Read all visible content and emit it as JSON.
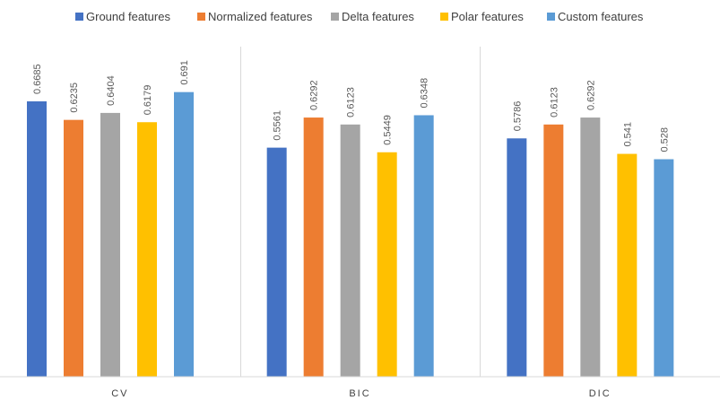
{
  "chart_data": {
    "type": "bar",
    "categories": [
      "CV",
      "BIC",
      "DIC"
    ],
    "series": [
      {
        "name": "Ground features",
        "color": "#4472C4",
        "values": [
          0.6685,
          0.5561,
          0.5786
        ],
        "labels": [
          "0.6685",
          "0.5561",
          "0.5786"
        ]
      },
      {
        "name": "Normalized features",
        "color": "#ED7D31",
        "values": [
          0.6235,
          0.6292,
          0.6123
        ],
        "labels": [
          "0.6235",
          "0.6292",
          "0.6123"
        ]
      },
      {
        "name": "Delta features",
        "color": "#A5A5A5",
        "values": [
          0.6404,
          0.6123,
          0.6292
        ],
        "labels": [
          "0.6404",
          "0.6123",
          "0.6292"
        ]
      },
      {
        "name": "Polar features",
        "color": "#FFC000",
        "values": [
          0.6179,
          0.5449,
          0.541
        ],
        "labels": [
          "0.6179",
          "0.5449",
          "0.541"
        ]
      },
      {
        "name": "Custom features",
        "color": "#5B9BD5",
        "values": [
          0.691,
          0.6348,
          0.528
        ],
        "labels": [
          "0.691",
          "0.6348",
          "0.528"
        ]
      }
    ],
    "title": "",
    "xlabel": "",
    "ylabel": "",
    "ylim": [
      0,
      0.7
    ],
    "legend": "top",
    "grid": false,
    "category_separators": true
  }
}
